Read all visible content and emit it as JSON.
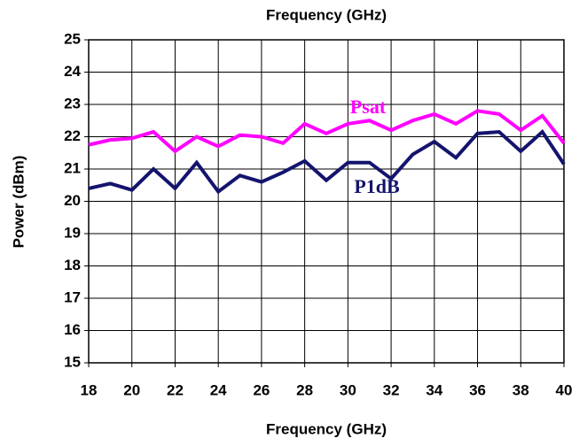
{
  "chart_data": {
    "type": "line",
    "title": "Frequency (GHz)",
    "x_label": "Frequency (GHz)",
    "y_label": "Power (dBm)",
    "x": [
      18,
      19,
      20,
      21,
      22,
      23,
      24,
      25,
      26,
      27,
      28,
      29,
      30,
      31,
      32,
      33,
      34,
      35,
      36,
      37,
      38,
      39,
      40
    ],
    "series": [
      {
        "name": "Psat",
        "color": "#ff00ff",
        "values": [
          21.75,
          21.9,
          21.95,
          22.15,
          21.55,
          22.0,
          21.7,
          22.05,
          22.0,
          21.8,
          22.4,
          22.1,
          22.4,
          22.5,
          22.2,
          22.5,
          22.7,
          22.4,
          22.8,
          22.7,
          22.2,
          22.65,
          21.8
        ]
      },
      {
        "name": "P1dB",
        "color": "#14146e",
        "values": [
          20.4,
          20.55,
          20.35,
          21.0,
          20.4,
          21.2,
          20.3,
          20.8,
          20.6,
          20.9,
          21.25,
          20.65,
          21.2,
          21.2,
          20.7,
          21.45,
          21.85,
          21.35,
          22.1,
          22.15,
          21.55,
          22.15,
          21.15
        ]
      }
    ],
    "xlim": [
      18,
      40
    ],
    "xticks": [
      18,
      20,
      22,
      24,
      26,
      28,
      30,
      32,
      34,
      36,
      38,
      40
    ],
    "ylim": [
      15,
      25
    ],
    "yticks": [
      15,
      16,
      17,
      18,
      19,
      20,
      21,
      22,
      23,
      24,
      25
    ],
    "grid": true
  }
}
